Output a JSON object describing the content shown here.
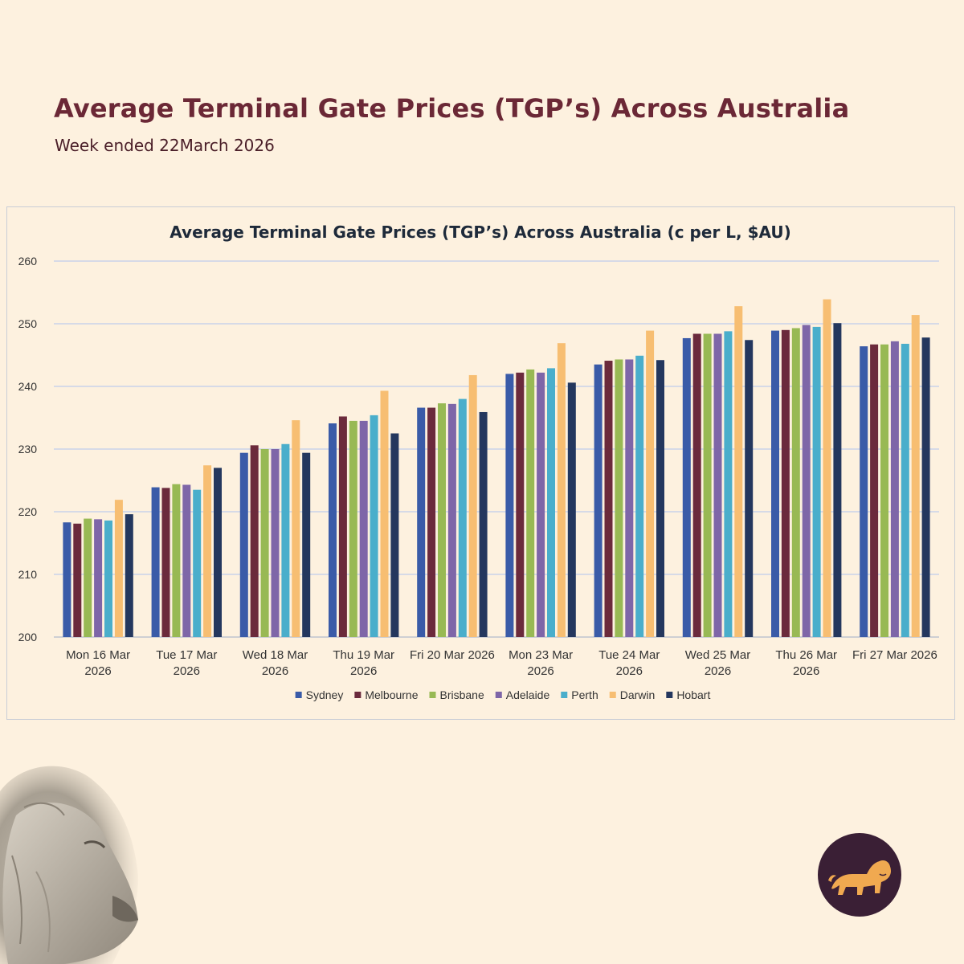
{
  "header": {
    "title": "Average Terminal Gate Prices (TGP’s)  Across Australia",
    "subtitle": "Week ended 22March 2026"
  },
  "chart_data": {
    "type": "bar",
    "title": "Average Terminal Gate Prices (TGP’s) Across Australia (c per L, $AU)",
    "xlabel": "",
    "ylabel": "",
    "ylim": [
      200,
      260
    ],
    "yticks": [
      200,
      210,
      220,
      230,
      240,
      250,
      260
    ],
    "grid": true,
    "legend_position": "bottom",
    "categories": [
      [
        "Mon 16 Mar",
        "2026"
      ],
      [
        "Tue 17 Mar",
        "2026"
      ],
      [
        "Wed 18 Mar",
        "2026"
      ],
      [
        "Thu 19 Mar",
        "2026"
      ],
      [
        "Fri 20 Mar 2026"
      ],
      [
        "Mon 23 Mar",
        "2026"
      ],
      [
        "Tue 24 Mar",
        "2026"
      ],
      [
        "Wed 25 Mar",
        "2026"
      ],
      [
        "Thu 26 Mar",
        "2026"
      ],
      [
        "Fri 27 Mar 2026"
      ]
    ],
    "series": [
      {
        "name": "Sydney",
        "color": "#3a5ba8",
        "values": [
          218.3,
          223.9,
          229.4,
          234.1,
          236.6,
          242.0,
          243.5,
          247.7,
          248.9,
          246.4
        ]
      },
      {
        "name": "Melbourne",
        "color": "#6b2a3c",
        "values": [
          218.1,
          223.8,
          230.6,
          235.2,
          236.6,
          242.2,
          244.1,
          248.4,
          249.0,
          246.7
        ]
      },
      {
        "name": "Brisbane",
        "color": "#98b954",
        "values": [
          218.9,
          224.4,
          230.0,
          234.5,
          237.3,
          242.7,
          244.3,
          248.4,
          249.3,
          246.7
        ]
      },
      {
        "name": "Adelaide",
        "color": "#7e66a8",
        "values": [
          218.8,
          224.3,
          230.0,
          234.5,
          237.2,
          242.2,
          244.3,
          248.4,
          249.8,
          247.2
        ]
      },
      {
        "name": "Perth",
        "color": "#4aaecb",
        "values": [
          218.6,
          223.5,
          230.8,
          235.4,
          238.0,
          242.9,
          244.9,
          248.8,
          249.5,
          246.8
        ]
      },
      {
        "name": "Darwin",
        "color": "#f7be72",
        "values": [
          221.9,
          227.4,
          234.6,
          239.3,
          241.8,
          246.9,
          248.9,
          252.8,
          253.9,
          251.4
        ]
      },
      {
        "name": "Hobart",
        "color": "#24375e",
        "values": [
          219.6,
          227.0,
          229.4,
          232.5,
          235.9,
          240.6,
          244.2,
          247.4,
          250.1,
          247.8
        ]
      }
    ]
  }
}
